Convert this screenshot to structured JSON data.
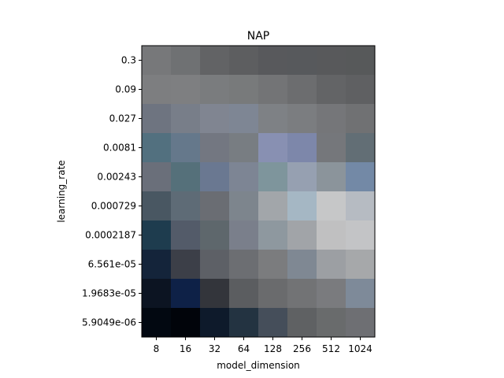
{
  "chart_data": {
    "type": "heatmap",
    "title": "NAP",
    "xlabel": "model_dimension",
    "ylabel": "learning_rate",
    "x_categories": [
      "8",
      "16",
      "32",
      "64",
      "128",
      "256",
      "512",
      "1024"
    ],
    "y_categories": [
      "0.3",
      "0.09",
      "0.027",
      "0.0081",
      "0.00243",
      "0.000729",
      "0.0002187",
      "6.561e-05",
      "1.9683e-05",
      "5.9049e-06"
    ],
    "cell_colors": [
      [
        "#77787a",
        "#6f7173",
        "#626365",
        "#5d5e60",
        "#58595c",
        "#57595c",
        "#58595b",
        "#57595a"
      ],
      [
        "#7d7e80",
        "#7e7f81",
        "#7a7c7e",
        "#787a7b",
        "#737476",
        "#6c6d6f",
        "#636466",
        "#5f6062"
      ],
      [
        "#6e7480",
        "#787e89",
        "#808591",
        "#7e8694",
        "#7e8185",
        "#7b7d80",
        "#757679",
        "#707173"
      ],
      [
        "#52707f",
        "#65788b",
        "#737781",
        "#787d82",
        "#8890b2",
        "#7d87aa",
        "#75777b",
        "#626e75"
      ],
      [
        "#6a6f7a",
        "#55707a",
        "#6a7891",
        "#7d8594",
        "#7e959c",
        "#96a0b1",
        "#8b949b",
        "#7389a6"
      ],
      [
        "#495762",
        "#5e6b76",
        "#6a6d73",
        "#7d858d",
        "#a2a6aa",
        "#a5b7c4",
        "#c6c7c8",
        "#b6bbc2"
      ],
      [
        "#1e3c4e",
        "#535b69",
        "#5e676c",
        "#7a7f8b",
        "#8e989f",
        "#a1a4a8",
        "#c0c0c1",
        "#c3c4c6"
      ],
      [
        "#14243a",
        "#3c3f48",
        "#5d6066",
        "#6c6e72",
        "#7b7c7e",
        "#7f8893",
        "#9c9fa3",
        "#a6a8aa"
      ],
      [
        "#0c1422",
        "#0e2147",
        "#33353b",
        "#5b5d60",
        "#6a6b6d",
        "#727375",
        "#7a7b7e",
        "#7e8a99"
      ],
      [
        "#020811",
        "#01040a",
        "#0e1a2b",
        "#233341",
        "#454e5a",
        "#5f6163",
        "#696b6c",
        "#6e6f73"
      ]
    ]
  }
}
